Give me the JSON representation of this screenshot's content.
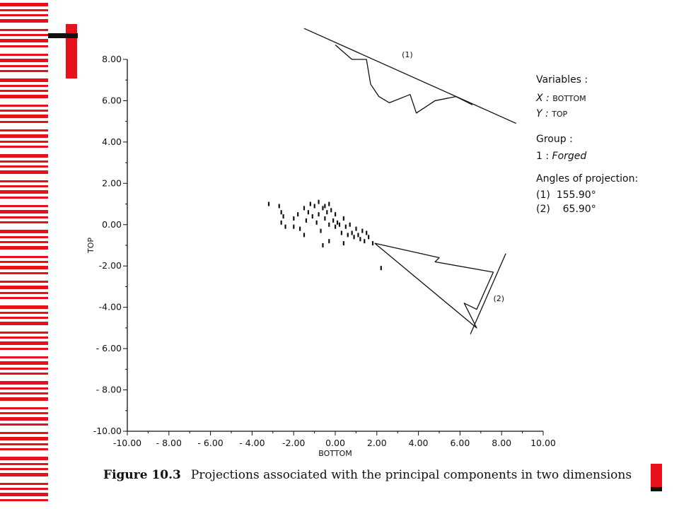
{
  "decor": {
    "stripe_color": "#e8101a",
    "accent_dark": "#111111"
  },
  "caption": {
    "figure_label": "Figure 10.3",
    "text": "Projections associated with the principal components in two dimensions"
  },
  "legend": {
    "variables_title": "Variables :",
    "x_line_prefix": "X : ",
    "x_line_value": "BOTTOM",
    "y_line_prefix": "Y : ",
    "y_line_value": "TOP",
    "group_title": "Group :",
    "group_line_prefix": "1 : ",
    "group_line_value": "Forged",
    "angles_title": "Angles of projection:",
    "angle_1": "(1)  155.90°",
    "angle_2": "(2)    65.90°"
  },
  "chart_data": {
    "type": "scatter",
    "xlabel": "BOTTOM",
    "ylabel": "TOP",
    "xlim": [
      -10,
      10
    ],
    "ylim": [
      -10,
      8
    ],
    "xticks": [
      "-10.00",
      "- 8.00",
      "- 6.00",
      "- 4.00",
      "-2.00",
      "0.00",
      "2.00",
      "4.00",
      "6.00",
      "8.00",
      "10.00"
    ],
    "yticks": [
      "8.00",
      "6.00",
      "4.00",
      "2.00",
      "0.00",
      "-2.00",
      "-4.00",
      "- 6.00",
      "- 8.00",
      "-10.00"
    ],
    "points": [
      [
        -3.2,
        1.0
      ],
      [
        -2.7,
        0.9
      ],
      [
        -2.6,
        0.6
      ],
      [
        -2.5,
        0.4
      ],
      [
        -2.6,
        0.1
      ],
      [
        -2.4,
        -0.1
      ],
      [
        -2.0,
        0.3
      ],
      [
        -1.8,
        0.5
      ],
      [
        -1.7,
        -0.2
      ],
      [
        -1.5,
        0.8
      ],
      [
        -1.4,
        0.2
      ],
      [
        -1.3,
        0.6
      ],
      [
        -1.2,
        1.0
      ],
      [
        -1.1,
        0.4
      ],
      [
        -1.0,
        0.9
      ],
      [
        -0.9,
        0.1
      ],
      [
        -0.8,
        1.1
      ],
      [
        -0.8,
        0.5
      ],
      [
        -0.7,
        -0.3
      ],
      [
        -0.6,
        0.8
      ],
      [
        -0.5,
        0.9
      ],
      [
        -0.5,
        0.3
      ],
      [
        -0.4,
        0.6
      ],
      [
        -0.3,
        1.0
      ],
      [
        -0.3,
        0.0
      ],
      [
        -0.2,
        0.7
      ],
      [
        -0.1,
        0.2
      ],
      [
        0.0,
        0.5
      ],
      [
        0.0,
        -0.1
      ],
      [
        0.1,
        0.1
      ],
      [
        0.2,
        0.0
      ],
      [
        0.3,
        -0.4
      ],
      [
        0.4,
        0.3
      ],
      [
        0.5,
        -0.1
      ],
      [
        0.6,
        -0.5
      ],
      [
        0.7,
        0.0
      ],
      [
        0.8,
        -0.4
      ],
      [
        0.9,
        -0.6
      ],
      [
        1.0,
        -0.2
      ],
      [
        1.1,
        -0.5
      ],
      [
        1.2,
        -0.7
      ],
      [
        1.3,
        -0.3
      ],
      [
        1.4,
        -0.8
      ],
      [
        1.5,
        -0.4
      ],
      [
        1.6,
        -0.6
      ],
      [
        1.8,
        -0.9
      ],
      [
        -0.6,
        -1.0
      ],
      [
        -0.3,
        -0.8
      ],
      [
        0.4,
        -0.9
      ],
      [
        2.2,
        -2.1
      ],
      [
        -1.5,
        -0.5
      ],
      [
        -2.0,
        -0.1
      ]
    ],
    "projection_1": {
      "label": "(1)",
      "axis_line": [
        [
          -1.5,
          9.5
        ],
        [
          8.7,
          4.9
        ]
      ],
      "profile": [
        [
          0.0,
          8.7
        ],
        [
          0.8,
          8.0
        ],
        [
          1.5,
          8.0
        ],
        [
          1.7,
          6.8
        ],
        [
          2.1,
          6.2
        ],
        [
          2.6,
          5.9
        ],
        [
          3.6,
          6.3
        ],
        [
          3.9,
          5.4
        ],
        [
          4.8,
          6.0
        ],
        [
          5.8,
          6.2
        ],
        [
          6.6,
          5.8
        ]
      ]
    },
    "projection_2": {
      "label": "(2)",
      "axis_line": [
        [
          6.5,
          -5.3
        ],
        [
          8.2,
          -1.4
        ]
      ],
      "profile": [
        [
          1.9,
          -0.9
        ],
        [
          5.0,
          -1.6
        ],
        [
          4.8,
          -1.8
        ],
        [
          7.6,
          -2.3
        ],
        [
          6.8,
          -4.1
        ],
        [
          6.2,
          -3.8
        ],
        [
          6.8,
          -5.0
        ],
        [
          1.9,
          -0.9
        ]
      ]
    }
  }
}
